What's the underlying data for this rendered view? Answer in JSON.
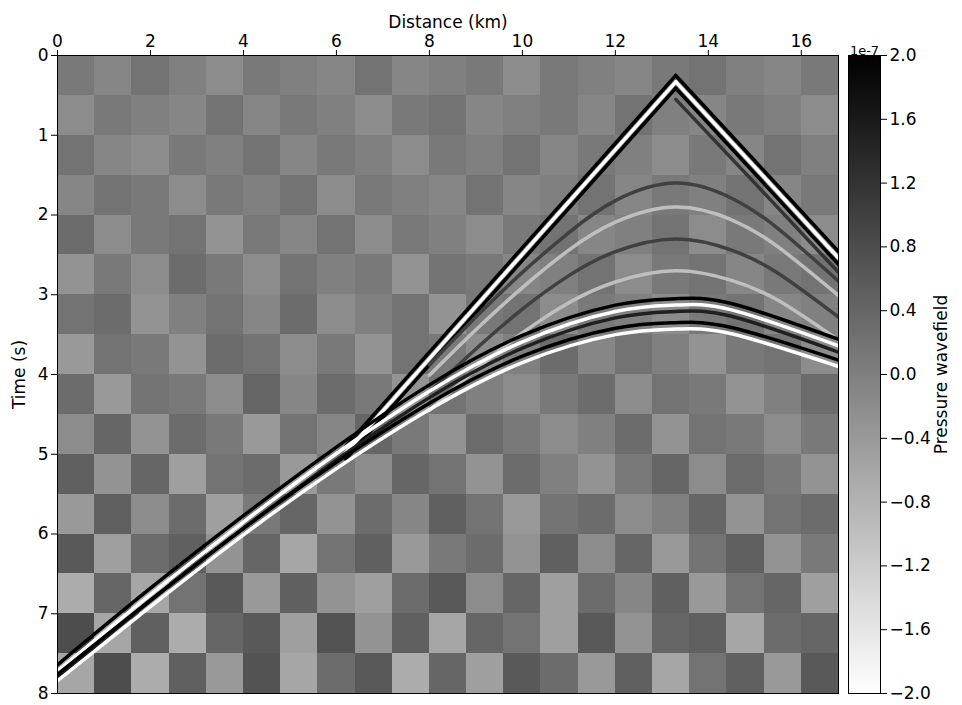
{
  "chart_data": {
    "type": "heatmap",
    "x_label": "Distance (km)",
    "y_label": "Time (s)",
    "xlim": [
      0,
      16.8
    ],
    "xticks": [
      0,
      2,
      4,
      6,
      8,
      10,
      12,
      14,
      16
    ],
    "ylim": [
      0,
      8
    ],
    "yticks": [
      0,
      1,
      2,
      3,
      4,
      5,
      6,
      7,
      8
    ],
    "x_edges": [
      0,
      0.8,
      1.6,
      2.4,
      3.2,
      4.0,
      4.8,
      5.6,
      6.4,
      7.2,
      8.0,
      8.8,
      9.6,
      10.4,
      11.2,
      12.0,
      12.8,
      13.6,
      14.4,
      15.2,
      16.0,
      16.8
    ],
    "t_edges": [
      0,
      0.5,
      1,
      1.5,
      2,
      2.5,
      3,
      3.5,
      4,
      4.5,
      5,
      5.5,
      6,
      6.5,
      7,
      7.5,
      8
    ],
    "cells": [
      [
        0.1,
        -0.1,
        0.2,
        0.0,
        -0.2,
        0.1,
        0.0,
        -0.1,
        0.2,
        -0.1,
        0.0,
        0.1,
        -0.2,
        0.1,
        0.0,
        -0.1,
        0.1,
        0.2,
        0.0,
        -0.1,
        0.1
      ],
      [
        -0.2,
        0.1,
        0.0,
        -0.1,
        0.2,
        -0.1,
        0.1,
        0.0,
        -0.2,
        0.1,
        0.2,
        -0.1,
        0.0,
        0.1,
        -0.1,
        0.2,
        0.0,
        -0.1,
        0.1,
        0.0,
        -0.2
      ],
      [
        0.2,
        -0.1,
        -0.2,
        0.1,
        0.0,
        0.2,
        -0.1,
        0.1,
        0.0,
        -0.2,
        0.1,
        0.0,
        0.2,
        -0.1,
        0.1,
        0.0,
        -0.2,
        0.1,
        -0.1,
        0.2,
        0.0
      ],
      [
        -0.1,
        0.2,
        0.1,
        -0.2,
        0.1,
        0.0,
        0.2,
        -0.2,
        0.1,
        0.0,
        -0.1,
        0.2,
        -0.1,
        0.0,
        0.2,
        -0.1,
        0.1,
        0.0,
        0.2,
        -0.1,
        0.1
      ],
      [
        0.3,
        -0.2,
        0.1,
        0.2,
        -0.3,
        0.1,
        -0.1,
        0.2,
        -0.2,
        0.1,
        0.0,
        -0.2,
        0.1,
        0.2,
        -0.1,
        0.0,
        0.2,
        -0.2,
        0.1,
        0.0,
        -0.2
      ],
      [
        -0.3,
        0.1,
        -0.2,
        0.3,
        0.1,
        -0.2,
        0.2,
        0.0,
        0.1,
        -0.3,
        0.2,
        0.1,
        -0.1,
        0.0,
        0.2,
        -0.2,
        0.1,
        0.2,
        -0.1,
        0.1,
        0.2
      ],
      [
        0.2,
        0.3,
        -0.3,
        0.0,
        0.2,
        -0.1,
        0.3,
        -0.2,
        0.0,
        0.2,
        -0.3,
        0.1,
        0.2,
        -0.2,
        0.1,
        0.0,
        -0.2,
        0.1,
        0.2,
        -0.1,
        0.0
      ],
      [
        -0.4,
        0.2,
        0.1,
        -0.3,
        0.3,
        0.2,
        -0.2,
        0.1,
        -0.3,
        0.2,
        0.1,
        -0.2,
        0.0,
        0.3,
        -0.1,
        0.2,
        0.0,
        -0.3,
        0.1,
        0.2,
        -0.2
      ],
      [
        0.3,
        -0.4,
        0.2,
        0.1,
        -0.2,
        0.4,
        -0.1,
        0.3,
        0.1,
        -0.3,
        0.2,
        0.0,
        -0.2,
        0.1,
        0.3,
        -0.2,
        0.2,
        0.1,
        -0.3,
        0.0,
        0.3
      ],
      [
        -0.2,
        0.4,
        -0.3,
        0.3,
        0.1,
        -0.4,
        0.2,
        -0.1,
        0.4,
        0.1,
        -0.3,
        0.3,
        0.1,
        -0.2,
        0.0,
        0.3,
        -0.3,
        0.2,
        0.1,
        -0.2,
        0.1
      ],
      [
        0.5,
        -0.3,
        0.4,
        -0.5,
        0.2,
        0.3,
        -0.4,
        0.1,
        -0.2,
        0.4,
        0.2,
        -0.3,
        0.3,
        0.0,
        -0.3,
        0.1,
        0.4,
        -0.2,
        0.3,
        0.1,
        -0.3
      ],
      [
        -0.4,
        0.5,
        -0.2,
        0.3,
        -0.5,
        0.1,
        0.4,
        -0.3,
        0.3,
        -0.1,
        0.5,
        0.2,
        -0.4,
        0.2,
        0.3,
        -0.2,
        0.0,
        0.4,
        -0.3,
        0.2,
        0.3
      ],
      [
        0.6,
        -0.5,
        0.3,
        0.5,
        -0.3,
        0.4,
        -0.6,
        0.2,
        0.5,
        -0.4,
        0.1,
        0.3,
        -0.3,
        0.5,
        -0.2,
        0.4,
        -0.4,
        0.2,
        0.5,
        -0.3,
        0.1
      ],
      [
        -0.7,
        0.4,
        -0.6,
        0.2,
        0.6,
        -0.4,
        0.5,
        -0.3,
        -0.5,
        0.3,
        0.6,
        -0.2,
        0.4,
        -0.5,
        0.3,
        -0.1,
        0.5,
        -0.4,
        0.2,
        0.4,
        -0.5
      ],
      [
        0.8,
        -0.6,
        0.5,
        -0.7,
        0.4,
        0.6,
        -0.5,
        0.7,
        -0.3,
        0.5,
        -0.6,
        0.4,
        0.2,
        -0.5,
        0.6,
        -0.3,
        0.4,
        0.5,
        -0.6,
        0.3,
        0.4
      ],
      [
        -0.6,
        0.8,
        -0.7,
        0.5,
        -0.4,
        0.7,
        -0.6,
        0.3,
        0.6,
        -0.7,
        0.4,
        -0.5,
        0.6,
        0.3,
        -0.4,
        0.5,
        -0.6,
        0.2,
        0.5,
        -0.4,
        0.6
      ]
    ],
    "events": [
      {
        "amplitude": 2,
        "x": [
          13.3,
          12,
          10,
          8,
          6.2
        ],
        "t": [
          0.25,
          1.1,
          2.41,
          3.72,
          4.9
        ]
      },
      {
        "amplitude": -2,
        "x": [
          13.3,
          12,
          10,
          8,
          6.2
        ],
        "t": [
          0.33,
          1.18,
          2.49,
          3.8,
          4.98
        ]
      },
      {
        "amplitude": 2,
        "x": [
          13.3,
          12,
          10,
          8,
          6.2
        ],
        "t": [
          0.41,
          1.26,
          2.57,
          3.88,
          5.06
        ]
      },
      {
        "amplitude": 2,
        "x": [
          13.3,
          15,
          16.8
        ],
        "t": [
          0.25,
          1.32,
          2.46
        ]
      },
      {
        "amplitude": -2,
        "x": [
          13.3,
          15,
          16.8
        ],
        "t": [
          0.33,
          1.4,
          2.54
        ]
      },
      {
        "amplitude": 2,
        "x": [
          13.3,
          15,
          16.8
        ],
        "t": [
          0.41,
          1.48,
          2.62
        ]
      },
      {
        "amplitude": 1.2,
        "x": [
          13.3,
          15,
          16.8
        ],
        "t": [
          0.55,
          1.6,
          2.72
        ]
      },
      {
        "amplitude": 1,
        "x": [
          8,
          9,
          10,
          11,
          12,
          13.3,
          14.5,
          15.5,
          16.8
        ],
        "t": [
          3.88,
          3.28,
          2.72,
          2.22,
          1.82,
          1.6,
          1.79,
          2.17,
          2.83
        ]
      },
      {
        "amplitude": -1,
        "x": [
          8,
          9,
          10,
          11,
          12,
          13.3,
          14.5,
          15.5,
          16.8
        ],
        "t": [
          4.01,
          3.44,
          2.91,
          2.44,
          2.09,
          1.9,
          2.06,
          2.4,
          3.01
        ]
      },
      {
        "amplitude": 1,
        "x": [
          8,
          9,
          10,
          11,
          12,
          13.3,
          14.5,
          15.5,
          16.8
        ],
        "t": [
          4.22,
          3.68,
          3.18,
          2.76,
          2.46,
          2.3,
          2.44,
          2.73,
          3.28
        ]
      },
      {
        "amplitude": -1,
        "x": [
          8,
          9,
          10,
          11,
          12,
          13.3,
          14.5,
          15.5,
          16.8
        ],
        "t": [
          4.45,
          3.94,
          3.48,
          3.1,
          2.84,
          2.7,
          2.82,
          3.07,
          3.57
        ]
      },
      {
        "amplitude": 2,
        "x": [
          0,
          2,
          4,
          6,
          8,
          10,
          12,
          13.3,
          14.5,
          16.8
        ],
        "t": [
          7.64,
          6.68,
          5.77,
          4.91,
          4.13,
          3.51,
          3.13,
          3.05,
          3.11,
          3.56
        ]
      },
      {
        "amplitude": -2,
        "x": [
          0,
          2,
          4,
          6,
          8,
          10,
          12,
          13.3,
          14.5,
          16.8
        ],
        "t": [
          7.72,
          6.76,
          5.85,
          4.99,
          4.21,
          3.59,
          3.21,
          3.13,
          3.19,
          3.64
        ]
      },
      {
        "amplitude": 1.5,
        "x": [
          0,
          2,
          4,
          6,
          8,
          10,
          12,
          13.3,
          14.5,
          16.8
        ],
        "t": [
          7.8,
          6.84,
          5.93,
          5.07,
          4.29,
          3.67,
          3.29,
          3.21,
          3.27,
          3.72
        ]
      },
      {
        "amplitude": 2,
        "x": [
          0,
          2,
          4,
          6,
          8,
          10,
          12,
          13.3,
          14.5,
          16.8
        ],
        "t": [
          7.76,
          6.83,
          5.93,
          5.1,
          4.36,
          3.77,
          3.42,
          3.35,
          3.41,
          3.82
        ]
      },
      {
        "amplitude": -2,
        "x": [
          0,
          2,
          4,
          6,
          8,
          10,
          12,
          13.3,
          14.5,
          16.8
        ],
        "t": [
          7.84,
          6.91,
          6.01,
          5.18,
          4.44,
          3.85,
          3.5,
          3.43,
          3.49,
          3.9
        ]
      }
    ],
    "colorbar": {
      "label": "Pressure wavefield",
      "offset_text": "1e-7",
      "range": [
        -2,
        2
      ],
      "ticks": [
        {
          "value": 2,
          "label": "2.0"
        },
        {
          "value": 1.6,
          "label": "1.6"
        },
        {
          "value": 1.2,
          "label": "1.2"
        },
        {
          "value": 0.8,
          "label": "0.8"
        },
        {
          "value": 0.4,
          "label": "0.4"
        },
        {
          "value": 0,
          "label": "0.0"
        },
        {
          "value": -0.4,
          "label": "−0.4"
        },
        {
          "value": -0.8,
          "label": "−0.8"
        },
        {
          "value": -1.2,
          "label": "−1.2"
        },
        {
          "value": -1.6,
          "label": "−1.6"
        },
        {
          "value": -2,
          "label": "−2.0"
        }
      ]
    }
  }
}
